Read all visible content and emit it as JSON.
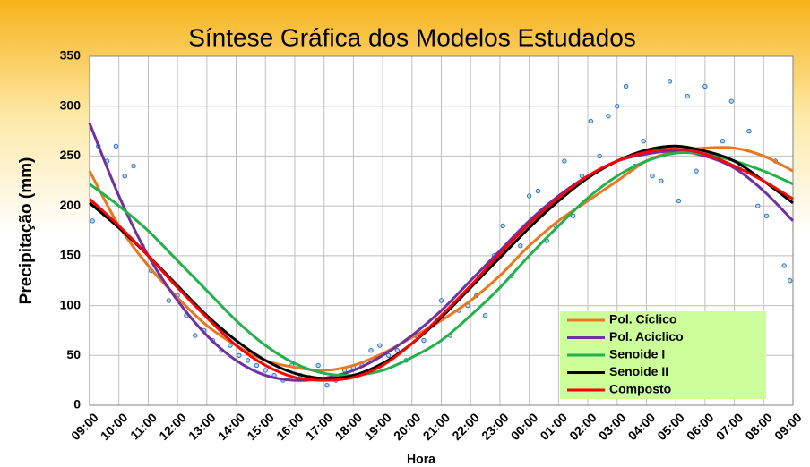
{
  "chart_data": {
    "type": "line",
    "title": "Síntese Gráfica dos Modelos Estudados",
    "xlabel": "Hora",
    "ylabel": "Precipitação (mm)",
    "xlim": [
      0,
      24
    ],
    "xticks": [
      {
        "value": 0,
        "label": "09:00"
      },
      {
        "value": 1,
        "label": "10:00"
      },
      {
        "value": 2,
        "label": "11:00"
      },
      {
        "value": 3,
        "label": "12:00"
      },
      {
        "value": 4,
        "label": "13:00"
      },
      {
        "value": 5,
        "label": "14:00"
      },
      {
        "value": 6,
        "label": "15:00"
      },
      {
        "value": 7,
        "label": "16:00"
      },
      {
        "value": 8,
        "label": "17:00"
      },
      {
        "value": 9,
        "label": "18:00"
      },
      {
        "value": 10,
        "label": "19:00"
      },
      {
        "value": 11,
        "label": "20:00"
      },
      {
        "value": 12,
        "label": "21:00"
      },
      {
        "value": 13,
        "label": "22:00"
      },
      {
        "value": 14,
        "label": "23:00"
      },
      {
        "value": 15,
        "label": "00:00"
      },
      {
        "value": 16,
        "label": "01:00"
      },
      {
        "value": 17,
        "label": "02:00"
      },
      {
        "value": 18,
        "label": "03:00"
      },
      {
        "value": 19,
        "label": "04:00"
      },
      {
        "value": 20,
        "label": "05:00"
      },
      {
        "value": 21,
        "label": "06:00"
      },
      {
        "value": 22,
        "label": "07:00"
      },
      {
        "value": 23,
        "label": "08:00"
      },
      {
        "value": 24,
        "label": "09:00"
      }
    ],
    "ylim": [
      0,
      350
    ],
    "yticks": [
      0,
      50,
      100,
      150,
      200,
      250,
      300,
      350
    ],
    "grid": true,
    "legend": "lower right",
    "x": [
      0,
      1,
      2,
      3,
      4,
      5,
      6,
      7,
      8,
      9,
      10,
      11,
      12,
      13,
      14,
      15,
      16,
      17,
      18,
      19,
      20,
      21,
      22,
      23,
      24
    ],
    "series": [
      {
        "name": "Pol. Cíclico",
        "color": "#e87722",
        "values": [
          235,
          180,
          140,
          108,
          80,
          60,
          45,
          38,
          35,
          40,
          52,
          68,
          85,
          105,
          130,
          160,
          185,
          205,
          225,
          245,
          255,
          258,
          258,
          250,
          235
        ]
      },
      {
        "name": "Pol. Aciclico",
        "color": "#7030a0",
        "values": [
          283,
          210,
          150,
          105,
          70,
          45,
          30,
          25,
          27,
          35,
          50,
          70,
          95,
          125,
          155,
          185,
          210,
          230,
          245,
          252,
          255,
          250,
          238,
          215,
          185
        ]
      },
      {
        "name": "Senoide I",
        "color": "#22b14c",
        "values": [
          222,
          200,
          175,
          145,
          115,
          85,
          60,
          42,
          32,
          30,
          35,
          48,
          65,
          90,
          118,
          150,
          180,
          208,
          230,
          245,
          253,
          252,
          245,
          235,
          222
        ]
      },
      {
        "name": "Senoide II",
        "color": "#000000",
        "values": [
          203,
          178,
          150,
          120,
          90,
          65,
          45,
          32,
          27,
          30,
          42,
          62,
          88,
          118,
          148,
          178,
          205,
          228,
          245,
          256,
          260,
          255,
          245,
          225,
          203
        ]
      },
      {
        "name": "Composto",
        "color": "#ff0000",
        "values": [
          207,
          180,
          150,
          118,
          88,
          60,
          40,
          28,
          25,
          28,
          40,
          62,
          90,
          120,
          152,
          182,
          208,
          230,
          245,
          254,
          257,
          252,
          240,
          225,
          207
        ]
      }
    ],
    "scatter": {
      "color": "#2e75b6",
      "x": [
        0.1,
        0.3,
        0.6,
        0.9,
        1.2,
        1.5,
        1.8,
        2.1,
        2.4,
        2.7,
        3.0,
        3.3,
        3.6,
        3.9,
        4.2,
        4.5,
        4.8,
        5.1,
        5.4,
        5.7,
        6.0,
        6.3,
        6.6,
        6.9,
        7.2,
        7.5,
        7.8,
        8.1,
        8.4,
        8.7,
        9.0,
        9.3,
        9.6,
        9.9,
        10.2,
        10.5,
        10.8,
        11.1,
        11.4,
        11.7,
        12.0,
        12.3,
        12.6,
        12.9,
        13.2,
        13.5,
        13.8,
        14.1,
        14.4,
        14.7,
        15.0,
        15.3,
        15.6,
        15.9,
        16.2,
        16.5,
        16.8,
        17.1,
        17.4,
        17.7,
        18.0,
        18.3,
        18.6,
        18.9,
        19.2,
        19.5,
        19.8,
        20.1,
        20.4,
        20.7,
        21.0,
        21.3,
        21.6,
        21.9,
        22.2,
        22.5,
        22.8,
        23.1,
        23.4,
        23.7,
        23.9
      ],
      "values": [
        185,
        260,
        245,
        260,
        230,
        240,
        160,
        135,
        130,
        105,
        110,
        90,
        70,
        75,
        65,
        55,
        60,
        50,
        45,
        40,
        35,
        30,
        25,
        40,
        30,
        28,
        40,
        20,
        25,
        35,
        38,
        40,
        55,
        60,
        50,
        55,
        45,
        70,
        65,
        80,
        105,
        70,
        95,
        100,
        110,
        90,
        150,
        180,
        130,
        160,
        210,
        215,
        165,
        180,
        245,
        190,
        230,
        285,
        250,
        290,
        300,
        320,
        240,
        265,
        230,
        225,
        325,
        205,
        310,
        235,
        320,
        250,
        265,
        305,
        240,
        275,
        200,
        190,
        245,
        140,
        125
      ]
    }
  }
}
